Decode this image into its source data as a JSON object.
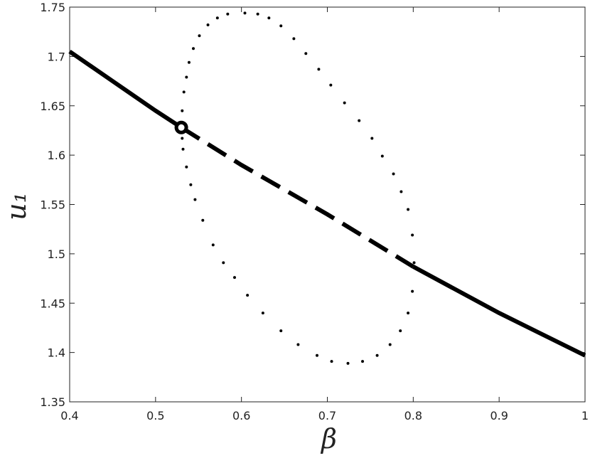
{
  "chart_data": {
    "type": "line",
    "xlabel": "β",
    "ylabel": "u₁",
    "xlim": [
      0.4,
      1
    ],
    "ylim": [
      1.35,
      1.75
    ],
    "xticks": [
      0.4,
      0.5,
      0.6,
      0.7,
      0.8,
      0.9,
      1
    ],
    "yticks": [
      1.35,
      1.4,
      1.45,
      1.5,
      1.55,
      1.6,
      1.65,
      1.7,
      1.75
    ],
    "series": [
      {
        "color": "#000000",
        "style": "solid",
        "x": [
          0.4,
          0.45,
          0.5,
          0.53
        ],
        "values": [
          1.705,
          1.675,
          1.645,
          1.628
        ]
      },
      {
        "color": "#000000",
        "style": "dashed",
        "x": [
          0.53,
          0.6,
          0.7,
          0.8
        ],
        "values": [
          1.628,
          1.59,
          1.54,
          1.487
        ]
      },
      {
        "color": "#000000",
        "style": "solid",
        "x": [
          0.8,
          0.9,
          1.0
        ],
        "values": [
          1.487,
          1.44,
          1.397
        ]
      },
      {
        "color": "#000000",
        "style": "dots",
        "x": [
          0.53,
          0.531,
          0.533,
          0.536,
          0.539,
          0.544,
          0.551,
          0.561,
          0.572,
          0.584,
          0.604,
          0.619,
          0.632,
          0.646,
          0.661,
          0.675,
          0.69,
          0.704,
          0.72,
          0.737,
          0.752,
          0.764,
          0.777,
          0.786,
          0.794,
          0.799,
          0.801,
          0.799,
          0.794,
          0.785,
          0.773,
          0.758,
          0.741,
          0.724,
          0.705,
          0.688,
          0.666,
          0.646,
          0.625,
          0.607,
          0.592,
          0.579,
          0.567,
          0.555,
          0.546,
          0.541,
          0.536,
          0.532,
          0.531
        ],
        "values": [
          1.629,
          1.645,
          1.664,
          1.679,
          1.694,
          1.708,
          1.721,
          1.732,
          1.739,
          1.743,
          1.744,
          1.743,
          1.739,
          1.731,
          1.718,
          1.703,
          1.687,
          1.671,
          1.653,
          1.635,
          1.617,
          1.599,
          1.581,
          1.563,
          1.545,
          1.519,
          1.491,
          1.462,
          1.44,
          1.422,
          1.408,
          1.397,
          1.391,
          1.389,
          1.391,
          1.397,
          1.408,
          1.422,
          1.44,
          1.458,
          1.476,
          1.491,
          1.509,
          1.534,
          1.555,
          1.57,
          1.588,
          1.606,
          1.617
        ]
      }
    ],
    "markers": [
      {
        "x": 0.53,
        "y": 1.628
      }
    ]
  }
}
